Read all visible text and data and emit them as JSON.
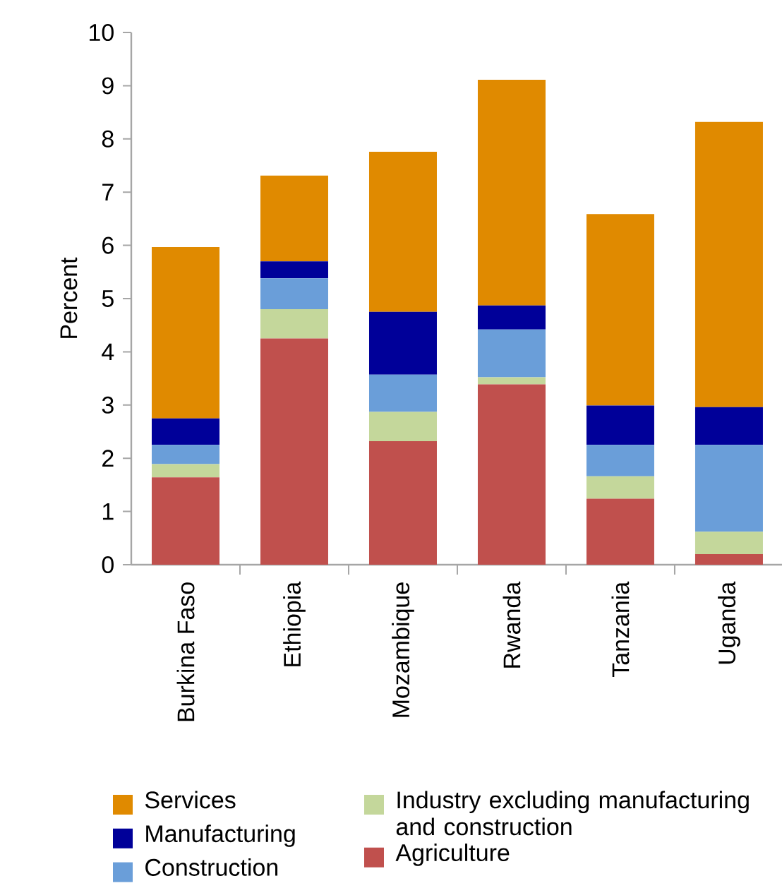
{
  "chart_data": {
    "type": "bar",
    "stacked": true,
    "ylabel": "Percent",
    "categories": [
      "Burkina Faso",
      "Ethiopia",
      "Mozambique",
      "Rwanda",
      "Tanzania",
      "Uganda"
    ],
    "ylim": [
      0,
      10
    ],
    "yticks": [
      0,
      1,
      2,
      3,
      4,
      5,
      6,
      7,
      8,
      9,
      10
    ],
    "legend": "bottom",
    "series": [
      {
        "name": "Agriculture",
        "color": "#c0504d",
        "values": [
          1.64,
          4.25,
          2.32,
          3.39,
          1.24,
          0.2
        ]
      },
      {
        "name": "Industry excluding manufacturing and construction",
        "color": "#c4d79b",
        "values": [
          0.25,
          0.55,
          0.55,
          0.13,
          0.42,
          0.42
        ]
      },
      {
        "name": "Construction",
        "color": "#6a9ed9",
        "values": [
          0.36,
          0.58,
          0.7,
          0.9,
          0.59,
          1.63
        ]
      },
      {
        "name": "Manufacturing",
        "color": "#000099",
        "values": [
          0.5,
          0.32,
          1.18,
          0.45,
          0.74,
          0.71
        ]
      },
      {
        "name": "Services",
        "color": "#e08a00",
        "values": [
          3.22,
          1.61,
          3.01,
          4.24,
          3.6,
          5.36
        ]
      }
    ]
  }
}
